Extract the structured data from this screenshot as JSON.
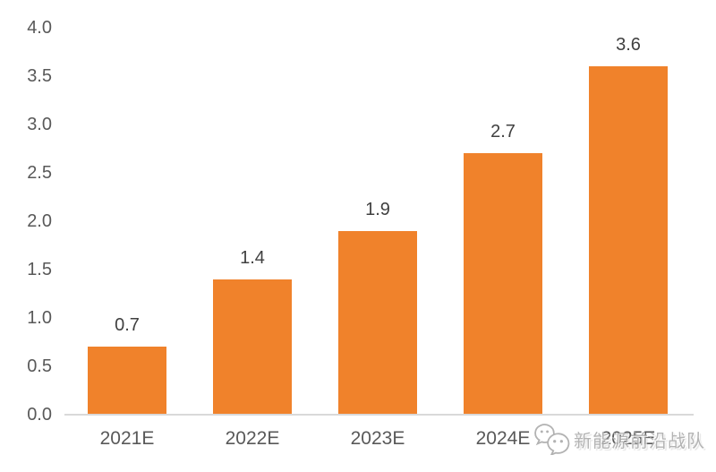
{
  "chart_data": {
    "type": "bar",
    "title": "",
    "xlabel": "",
    "ylabel": "",
    "categories": [
      "2021E",
      "2022E",
      "2023E",
      "2024E",
      "2025E"
    ],
    "values": [
      0.7,
      1.4,
      1.9,
      2.7,
      3.6
    ],
    "data_labels": [
      "0.7",
      "1.4",
      "1.9",
      "2.7",
      "3.6"
    ],
    "ylim": [
      0,
      4
    ],
    "y_ticks": [
      "0.0",
      "0.5",
      "1.0",
      "1.5",
      "2.0",
      "2.5",
      "3.0",
      "3.5",
      "4.0"
    ],
    "grid": false,
    "legend_position": "none",
    "bar_color": "#F0822B",
    "value_label_color": "#404040",
    "axis_text_color": "#595959",
    "axis_line_color": "#D9D9D9"
  },
  "watermark": {
    "icon": "wechat-icon",
    "text": "新能源前沿战队",
    "color": "#AEAEAE"
  }
}
